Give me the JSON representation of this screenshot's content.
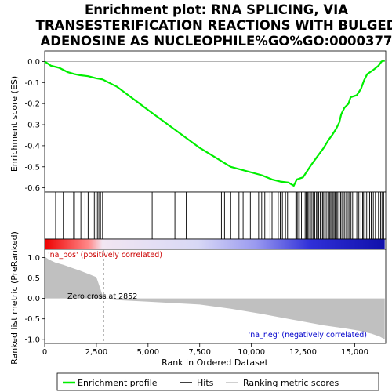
{
  "chart_data": {
    "type": "line",
    "title_lines": [
      "Enrichment plot: RNA SPLICING, VIA",
      "TRANSESTERIFICATION REACTIONS WITH BULGED",
      "ADENOSINE AS NUCLEOPHILE%GO%GO:0000377"
    ],
    "xlabel": "Rank in Ordered Dataset",
    "es_ylabel": "Enrichment score (ES)",
    "metric_ylabel": "Ranked list metric (PreRanked)",
    "xlim": [
      0,
      16500
    ],
    "x_ticks": [
      0,
      2500,
      5000,
      7500,
      10000,
      12500,
      15000
    ],
    "x_tick_labels": [
      "0",
      "2,500",
      "5,000",
      "7,500",
      "10,000",
      "12,500",
      "15,000"
    ],
    "es_ylim": [
      -0.62,
      0.05
    ],
    "es_ticks": [
      0.0,
      -0.1,
      -0.2,
      -0.3,
      -0.4,
      -0.5,
      -0.6
    ],
    "es_tick_labels": [
      "0.0",
      "-0.1",
      "-0.2",
      "-0.3",
      "-0.4",
      "-0.5",
      "-0.6"
    ],
    "metric_ylim": [
      -1.1,
      1.2
    ],
    "metric_ticks": [
      1.0,
      0.5,
      0.0,
      -0.5,
      -1.0
    ],
    "metric_tick_labels": [
      "1.0",
      "0.5",
      "0.0",
      "-0.5",
      "-1.0"
    ],
    "enrichment_profile": {
      "name": "Enrichment profile",
      "color": "#00ee00",
      "x": [
        0,
        300,
        700,
        1100,
        1450,
        1700,
        2100,
        2500,
        2800,
        3500,
        5000,
        7500,
        9000,
        10500,
        11000,
        11400,
        11800,
        12050,
        12200,
        12500,
        12700,
        12900,
        13200,
        13500,
        13750,
        13900,
        14100,
        14250,
        14350,
        14500,
        14700,
        14800,
        15100,
        15300,
        15450,
        15600,
        15900,
        16150,
        16300,
        16450
      ],
      "y": [
        0.0,
        -0.02,
        -0.03,
        -0.05,
        -0.06,
        -0.065,
        -0.07,
        -0.08,
        -0.085,
        -0.12,
        -0.23,
        -0.41,
        -0.5,
        -0.54,
        -0.56,
        -0.57,
        -0.575,
        -0.59,
        -0.56,
        -0.55,
        -0.52,
        -0.49,
        -0.45,
        -0.41,
        -0.37,
        -0.35,
        -0.32,
        -0.29,
        -0.25,
        -0.22,
        -0.2,
        -0.17,
        -0.16,
        -0.13,
        -0.09,
        -0.06,
        -0.04,
        -0.02,
        0.0,
        0.005
      ]
    },
    "hits": {
      "name": "Hits",
      "color": "#000000",
      "positions": [
        530,
        900,
        1400,
        1440,
        1750,
        1800,
        1950,
        2100,
        2400,
        2480,
        2550,
        2620,
        2700,
        2800,
        5200,
        6300,
        6850,
        8550,
        8700,
        9000,
        9400,
        9600,
        9950,
        10350,
        10500,
        10650,
        10900,
        11000,
        11300,
        11400,
        11500,
        11650,
        11750,
        12150,
        12200,
        12250,
        12320,
        12420,
        12500,
        12600,
        12650,
        12720,
        12780,
        12860,
        12930,
        13000,
        13070,
        13150,
        13200,
        13260,
        13330,
        13380,
        13450,
        13500,
        13560,
        13620,
        13700,
        13760,
        13800,
        13850,
        13900,
        13950,
        14000,
        14050,
        14120,
        14180,
        14250,
        14320,
        14380,
        14450,
        14520,
        14600,
        14680,
        14750,
        14820,
        14900,
        15100,
        15200,
        15300,
        15380,
        15430,
        15500,
        15580,
        15650,
        15720,
        15800,
        15900,
        16000,
        16150,
        16250,
        16320,
        16400
      ]
    },
    "ranking_metric": {
      "name": "Ranking metric scores",
      "color": "#c0c0c0",
      "x": [
        0,
        200,
        500,
        900,
        1300,
        1700,
        2100,
        2500,
        2852,
        3500,
        5000,
        7500,
        9000,
        10500,
        12000,
        13500,
        14500,
        15200,
        15800,
        16200,
        16450
      ],
      "y": [
        1.02,
        0.95,
        0.88,
        0.82,
        0.75,
        0.68,
        0.6,
        0.52,
        0.0,
        -0.04,
        -0.08,
        -0.15,
        -0.25,
        -0.38,
        -0.52,
        -0.66,
        -0.73,
        -0.79,
        -0.86,
        -0.93,
        -1.0
      ]
    },
    "zero_cross": 2852,
    "zero_cross_label": "Zero cross at 2852",
    "pos_label": "'na_pos' (positively correlated)",
    "neg_label": "'na_neg' (negatively correlated)",
    "pos_color": "#cc0000",
    "neg_color": "#0000cc",
    "legend": {
      "placement": "bottom",
      "items": [
        {
          "label": "Enrichment profile",
          "color": "#00ee00",
          "style": "line"
        },
        {
          "label": "Hits",
          "color": "#000000",
          "style": "line"
        },
        {
          "label": "Ranking metric scores",
          "color": "#c0c0c0",
          "style": "line"
        }
      ]
    }
  }
}
